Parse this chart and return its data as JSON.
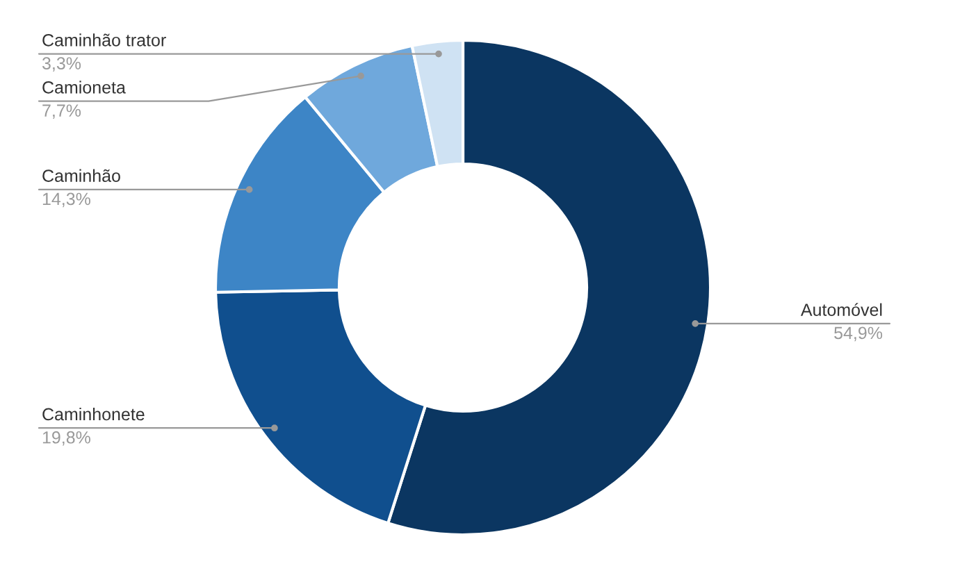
{
  "chart_data": {
    "type": "donut",
    "categories": [
      "Automóvel",
      "Caminhonete",
      "Caminhão",
      "Camioneta",
      "Caminhão trator"
    ],
    "values": [
      54.9,
      19.8,
      14.3,
      7.7,
      3.3
    ],
    "value_labels": [
      "54,9%",
      "19,8%",
      "14,3%",
      "7,7%",
      "3,3%"
    ],
    "colors": [
      "#0b3661",
      "#104f8e",
      "#3d85c6",
      "#6fa8dc",
      "#cfe2f3"
    ],
    "legend": false
  }
}
